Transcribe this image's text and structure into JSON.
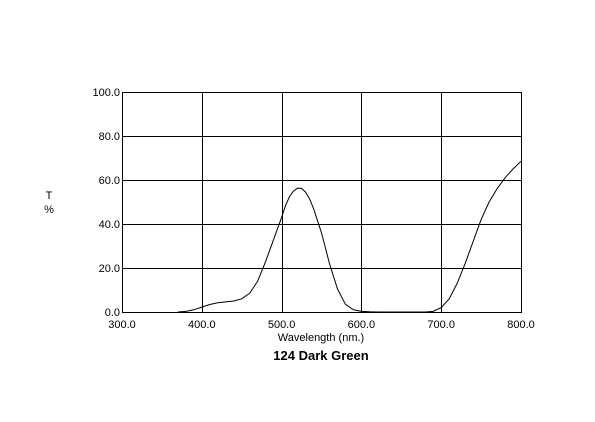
{
  "chart_data": {
    "type": "line",
    "title": "124 Dark Green",
    "xlabel": "Wavelength (nm.)",
    "ylabel_lines": [
      "T",
      "%"
    ],
    "xlim": [
      300,
      800
    ],
    "ylim": [
      0,
      100
    ],
    "x_ticks": [
      300,
      400,
      500,
      600,
      700,
      800
    ],
    "y_ticks": [
      0,
      20,
      40,
      60,
      80,
      100
    ],
    "x_tick_labels": [
      "300.0",
      "400.0",
      "500.0",
      "600.0",
      "700.0",
      "800.0"
    ],
    "y_tick_labels": [
      "0.0",
      "20.0",
      "40.0",
      "60.0",
      "80.0",
      "100.0"
    ],
    "grid": true,
    "line_color": "#000000",
    "series": [
      {
        "x": [
          370,
          380,
          390,
          400,
          410,
          420,
          430,
          440,
          450,
          460,
          470,
          480,
          490,
          500,
          505,
          510,
          515,
          520,
          525,
          530,
          535,
          540,
          550,
          560,
          570,
          580,
          590,
          600,
          610,
          620,
          650,
          680,
          690,
          700,
          710,
          720,
          730,
          740,
          750,
          760,
          770,
          780,
          790,
          800
        ],
        "y": [
          0,
          0.3,
          1.0,
          2.2,
          3.4,
          4.2,
          4.6,
          5.0,
          6.0,
          8.5,
          14.0,
          23.0,
          33.0,
          43.0,
          48.5,
          52.5,
          55.0,
          56.3,
          56.2,
          54.5,
          51.5,
          47.0,
          36.0,
          22.0,
          10.5,
          3.5,
          1.0,
          0.3,
          0.1,
          0,
          0,
          0,
          0.3,
          2.0,
          6.0,
          13.0,
          22.0,
          32.0,
          42.0,
          50.0,
          56.0,
          61.0,
          65.0,
          68.5
        ]
      }
    ]
  }
}
